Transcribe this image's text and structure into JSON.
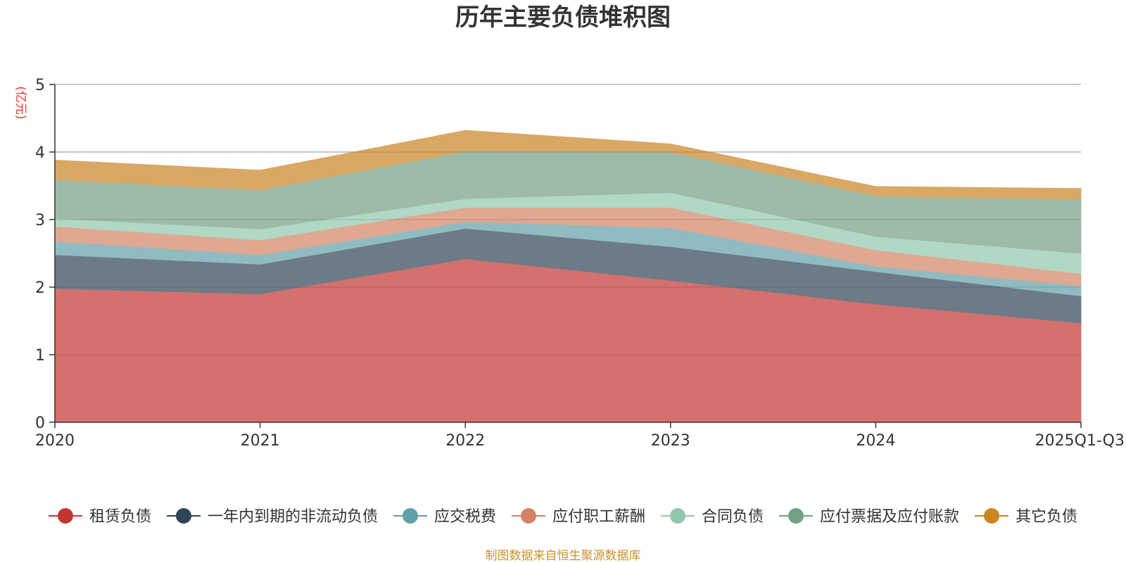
{
  "chart_data": {
    "type": "area",
    "stacked": true,
    "title": "历年主要负债堆积图",
    "unit": "(亿元)",
    "categories": [
      "2020",
      "2021",
      "2022",
      "2023",
      "2024",
      "2025Q1-Q3"
    ],
    "ylim": [
      0,
      5
    ],
    "yticks": [
      0,
      1,
      2,
      3,
      4,
      5
    ],
    "grid": true,
    "legend_position": "bottom",
    "series": [
      {
        "name": "租赁负债",
        "color": "#c23531",
        "fill": "#d4706d",
        "values": [
          1.98,
          1.9,
          2.42,
          2.1,
          1.75,
          1.47
        ]
      },
      {
        "name": "一年内到期的非流动负债",
        "color": "#2f4554",
        "fill": "#6d7b87",
        "values": [
          0.5,
          0.44,
          0.45,
          0.5,
          0.48,
          0.4
        ]
      },
      {
        "name": "应交税费",
        "color": "#61a0a8",
        "fill": "#90bbc1",
        "values": [
          0.2,
          0.14,
          0.1,
          0.28,
          0.08,
          0.15
        ]
      },
      {
        "name": "应付职工薪酬",
        "color": "#d48265",
        "fill": "#e0a791",
        "values": [
          0.22,
          0.22,
          0.21,
          0.3,
          0.24,
          0.18
        ]
      },
      {
        "name": "合同负债",
        "color": "#91c7ae",
        "fill": "#b1d7c5",
        "values": [
          0.12,
          0.16,
          0.13,
          0.22,
          0.2,
          0.3
        ]
      },
      {
        "name": "应付票据及应付账款",
        "color": "#749f83",
        "fill": "#9ebba8",
        "values": [
          0.57,
          0.58,
          0.7,
          0.6,
          0.6,
          0.8
        ]
      },
      {
        "name": "其它负债",
        "color": "#ca8622",
        "fill": "#d8a864",
        "values": [
          0.29,
          0.29,
          0.31,
          0.12,
          0.14,
          0.16
        ]
      }
    ],
    "source": "制图数据来自恒生聚源数据库"
  }
}
